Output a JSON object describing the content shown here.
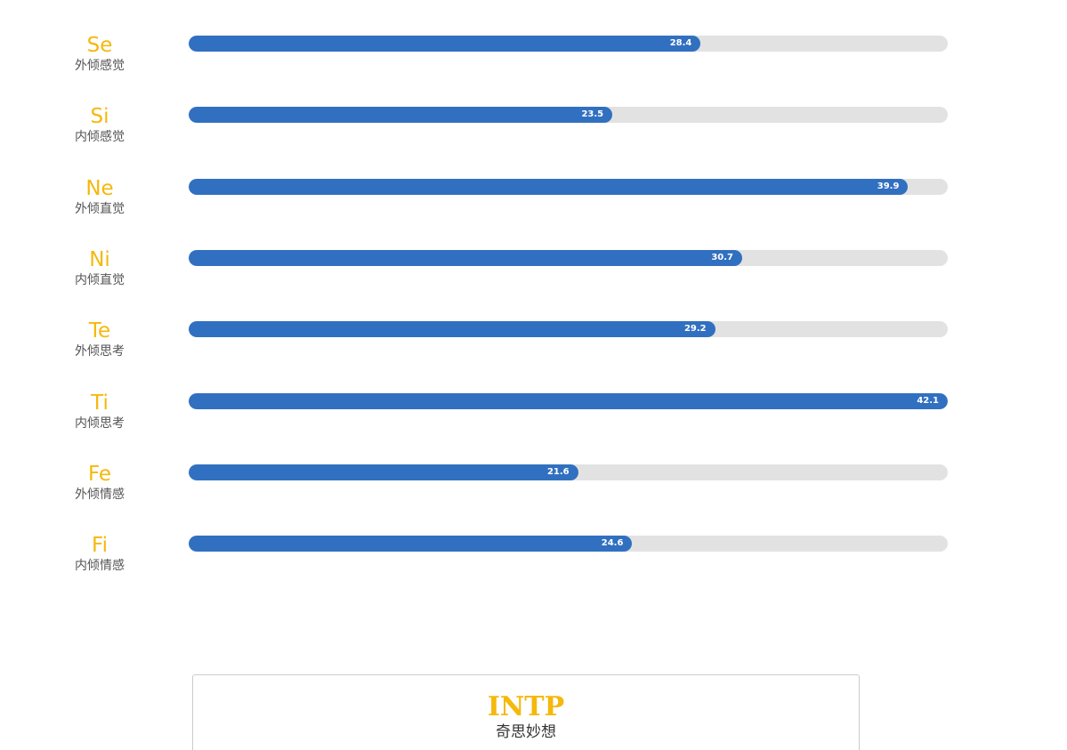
{
  "chart_data": {
    "type": "bar",
    "orientation": "horizontal",
    "xlim": [
      0,
      42.1
    ],
    "categories": [
      "Se",
      "Si",
      "Ne",
      "Ni",
      "Te",
      "Ti",
      "Fe",
      "Fi"
    ],
    "category_names": [
      "外倾感觉",
      "内倾感觉",
      "外倾直觉",
      "内倾直觉",
      "外倾思考",
      "内倾思考",
      "外倾情感",
      "内倾情感"
    ],
    "values": [
      28.4,
      23.5,
      39.9,
      30.7,
      29.2,
      42.1,
      21.6,
      24.6
    ],
    "value_labels": [
      "28.4",
      "23.5",
      "39.9",
      "30.7",
      "29.2",
      "42.1",
      "21.6",
      "24.6"
    ],
    "grid": false,
    "legend": "none"
  },
  "colors": {
    "accent": "#f5b80c",
    "bar_fill": "#3170c0",
    "bar_track": "#e2e2e2",
    "label_text": "#555555"
  },
  "result": {
    "type": "INTP",
    "name": "奇思妙想"
  }
}
